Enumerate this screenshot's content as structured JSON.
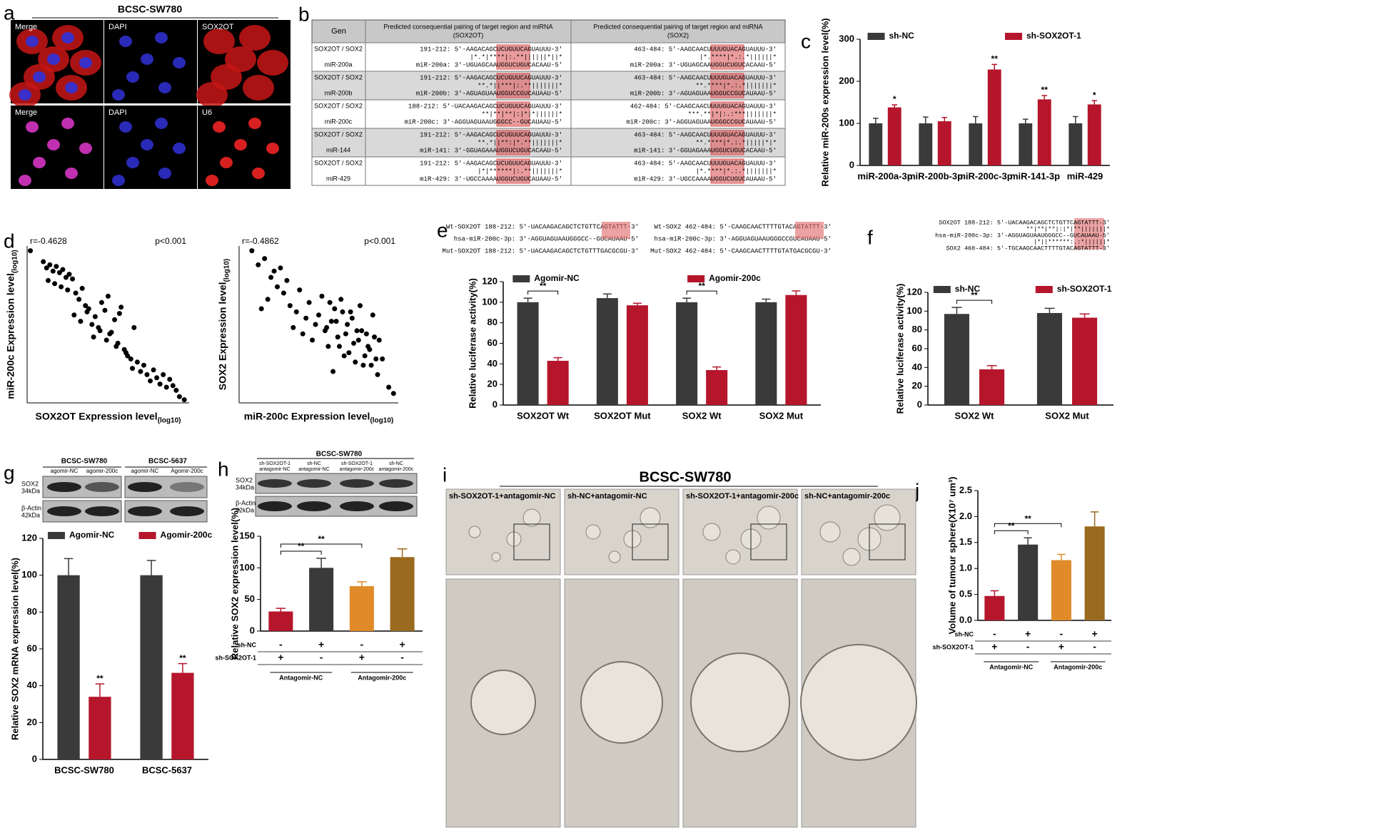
{
  "panel_labels": [
    "a",
    "b",
    "c",
    "d",
    "e",
    "f",
    "g",
    "h",
    "i",
    "j"
  ],
  "panel_a": {
    "title": "BCSC-SW780",
    "labels": [
      "Merge",
      "DAPI",
      "SOX2OT",
      "Merge",
      "DAPI",
      "U6"
    ]
  },
  "panel_b": {
    "header": [
      "Gen",
      [
        "Predicted consequential pairing of target region and miRNA",
        "(SOX2OT)"
      ],
      [
        "Predicted consequential pairing of target region and miRNA",
        "(SOX2)"
      ]
    ],
    "rows": [
      {
        "pair": "SOX2OT / SOX2",
        "mirna": "miR-200a",
        "sox2ot": [
          "191-212: 5′-AAGACAGCUCUGUUCAGUAUUU-3′",
          "|*.*|****|:.**||||||*||*",
          "miR-200a: 3′-UGUAGCAAUGGUCUGUCACAAU-5′"
        ],
        "sox2": [
          "463-484: 5′-AAGCAACUUUUGUACAGUAUUU-3′",
          "|*.****|*.:.*||||||*",
          "miR-200a: 3′-UGUAGCAAUGGUCUGUCACAAU-5′"
        ]
      },
      {
        "pair": "SOX2OT / SOX2",
        "mirna": "miR-200b",
        "sox2ot": [
          "191-212: 5′-AAGACAGCUCUGUUCAGUAUUU-3′",
          "**.*||***|:.**|||||||*",
          "miR-200b: 3′-AGUAGUAAUGGUCCGUCAUAAU-5′"
        ],
        "sox2": [
          "463-484: 5′-AAGCAACUUUUGUACAGUAUUU-3′",
          "**.****|*.:.*|||||||*",
          "miR-200b: 3′-AGUAGUAAUGGUCCGUCAUAAU-5′"
        ]
      },
      {
        "pair": "SOX2OT / SOX2",
        "mirna": "miR-200c",
        "sox2ot": [
          "188-212: 5′-UACAAGACAGCUCUGUUCAGUAUUU-3′",
          "**|**|**|:|*|*||||||*",
          "miR-200c: 3′-AGGUAGUAAUGGGCC--GUCAUAAU-5′"
        ],
        "sox2": [
          "462-484: 5′-CAAGCAACUUUUGUACAGUAUUU-3′",
          "***.**|*|:.:***|||||||*",
          "miR-200c: 3′-AGGUAGUAAUGGGCCGUCAUAAU-5′"
        ]
      },
      {
        "pair": "SOX2OT / SOX2",
        "mirna": "miR-144",
        "sox2ot": [
          "191-212: 5′-AAGACAGCUCUGUUCAGUAUUU-3′",
          "**.*||**:|*.**|||||||*",
          "miR-141: 3′-GGUAGAAAUGGUCUGUCACAAU-5′"
        ],
        "sox2": [
          "463-484: 5′-AAGCAACUUUUGUACAGUAUUU-3′",
          "**.****|*.:.*|||||*|*",
          "miR-141: 3′-GGUAGAAAUGGUCUGUCACAAU-5′"
        ]
      },
      {
        "pair": "SOX2OT / SOX2",
        "mirna": "miR-429",
        "sox2ot": [
          "191-212: 5′-AAGACAGCUCUGUUCAGUAUUU-3′",
          "|*|******|:.**|||||||*",
          "miR-429: 3′-UGCCAAAAUGGUCUGUCAUAAU-5′"
        ],
        "sox2": [
          "463-484: 5′-AAGCAACUUUUGUACAGUAUUU-3′",
          "|*.****|*.:.*|||||||*",
          "miR-429: 3′-UGCCAAAAUGGUCUGUCAUAAU-5′"
        ]
      }
    ]
  },
  "panel_e_seq": [
    [
      "Wt-SOX2OT 188-212: 5′-UACAAGACAGCTCTGTTCAGTATTT-3′",
      "hsa-miR-200c-3p: 3′-AGGUAGUAAUGGGCC--GUCAUAAU-5′",
      "Mut-SOX2OT 188-212: 5′-UACAAGACAGCTCTGTTTGACGCGU-3′"
    ],
    [
      "Wt-SOX2 462-484: 5′-CAAGCAACTTTTGTACAGTATTT-3′",
      "hsa-miR-200c-3p: 3′-AGGUAGUAAUGGGCCGUCAUAAU-5′",
      "Mut-SOX2 462-484: 5′-CAAGCAACTTTTGTATGACGCGU-3′"
    ]
  ],
  "panel_f_seq": [
    "SOX2OT 188-212: 5′-UACAAGACAGCTCTGTTCAGTATTT-3′",
    "**|**|**|:|*|**|||||||*",
    "hsa-miR-200c-3p: 3′-AGGUAGUAAUGGGCC--GUCAUAAU-5′",
    "|*||******:.:*||||||*",
    "SOX2 460-484: 5′-TGCAAGCAACTTTTGTACAGTATTT-3′"
  ],
  "panel_g_blot": {
    "groups": [
      "BCSC-SW780",
      "BCSC-5637"
    ],
    "lanes": [
      "agomir-NC",
      "agomir-200c",
      "agomir-NC",
      "Agomir-200c"
    ],
    "rows": [
      [
        "SOX2",
        "34kDa"
      ],
      [
        "β-Actin",
        "42kDa"
      ]
    ]
  },
  "panel_h_blot": {
    "title": "BCSC-SW780",
    "lanes": [
      [
        "sh-SOX2OT-1",
        "antagomir-NC"
      ],
      [
        "sh-NC",
        "antagomir-NC"
      ],
      [
        "sh-SOX2OT-1",
        "antagomir-200c"
      ],
      [
        "sh-NC",
        "antagomir-200c"
      ]
    ],
    "rows": [
      [
        "SOX2",
        "34kDa"
      ],
      [
        "β-Actin",
        "42kDa"
      ]
    ]
  },
  "panel_i": {
    "title": "BCSC-SW780",
    "labels": [
      "sh-SOX2OT-1+antagomir-NC",
      "sh-NC+antagomir-NC",
      "sh-SOX2OT-1+antagomir-200c",
      "sh-NC+antagomir-200c"
    ]
  },
  "chart_data": [
    {
      "type": "bar",
      "ylabel": "Relative miR-200s expression level(%)",
      "categories": [
        "miR-200a-3p",
        "miR-200b-3p",
        "miR-200c-3p",
        "miR-141-3p",
        "miR-429"
      ],
      "ylim": [
        0,
        300
      ],
      "yticks": [
        0,
        100,
        200,
        300
      ],
      "series": [
        {
          "name": "sh-NC",
          "color": "#3a3a3a",
          "values": [
            100,
            100,
            100,
            100,
            100
          ],
          "errors": [
            12,
            15,
            16,
            10,
            16
          ]
        },
        {
          "name": "sh-SOX2OT-1",
          "color": "#b5162b",
          "values": [
            138,
            105,
            228,
            157,
            145
          ],
          "errors": [
            6,
            9,
            12,
            9,
            9
          ]
        }
      ],
      "annotations": [
        {
          "text": "*",
          "category": 0,
          "series": 1
        },
        {
          "text": "**",
          "category": 2,
          "series": 1
        },
        {
          "text": "**",
          "category": 3,
          "series": 1
        },
        {
          "text": "*",
          "category": 4,
          "series": 1
        }
      ]
    },
    {
      "type": "scatter",
      "xlabel": "SOX2OT Expression level",
      "xlabel_sub": "(log10)",
      "ylabel": "miR-200c Expression level",
      "ylabel_sub": "(log10)",
      "annotations": [
        "r=-0.4628",
        "p<0.001"
      ],
      "xlim": [
        0,
        100
      ],
      "ylim": [
        0,
        100
      ],
      "color": "#000000",
      "x": [
        2,
        10,
        12,
        14,
        16,
        18,
        20,
        22,
        24,
        26,
        13,
        17,
        21,
        25,
        28,
        30,
        32,
        34,
        36,
        38,
        29,
        33,
        37,
        40,
        42,
        44,
        46,
        48,
        41,
        45,
        49,
        50,
        52,
        54,
        56,
        58,
        51,
        55,
        57,
        60,
        62,
        64,
        66,
        68,
        61,
        65,
        70,
        72,
        74,
        76,
        78,
        80,
        82,
        84,
        86,
        88,
        90,
        92,
        94,
        97
      ],
      "values": [
        97,
        90,
        86,
        88,
        84,
        87,
        83,
        85,
        80,
        82,
        78,
        76,
        74,
        72,
        79,
        70,
        66,
        73,
        62,
        60,
        56,
        52,
        58,
        50,
        55,
        48,
        64,
        59,
        42,
        46,
        40,
        68,
        45,
        53,
        38,
        61,
        44,
        36,
        57,
        34,
        30,
        28,
        48,
        26,
        32,
        22,
        20,
        24,
        18,
        14,
        21,
        16,
        12,
        18,
        10,
        15,
        11,
        8,
        4,
        2
      ]
    },
    {
      "type": "scatter",
      "xlabel": "miR-200c Expression level",
      "xlabel_sub": "(log10)",
      "ylabel": "SOX2 Expression level",
      "ylabel_sub": "(log10)",
      "annotations": [
        "r=-0.4862",
        "p<0.001"
      ],
      "xlim": [
        0,
        100
      ],
      "ylim": [
        0,
        100
      ],
      "color": "#000000",
      "x": [
        8,
        12,
        16,
        20,
        22,
        24,
        26,
        28,
        14,
        18,
        30,
        32,
        34,
        36,
        38,
        40,
        42,
        44,
        46,
        48,
        50,
        52,
        54,
        56,
        58,
        60,
        62,
        64,
        66,
        68,
        70,
        72,
        74,
        76,
        78,
        80,
        82,
        84,
        86,
        88,
        55,
        57,
        59,
        61,
        63,
        65,
        67,
        69,
        71,
        73,
        75,
        77,
        79,
        81,
        83,
        85,
        87,
        90,
        94,
        97
      ],
      "values": [
        97,
        88,
        92,
        80,
        84,
        74,
        86,
        70,
        60,
        66,
        78,
        62,
        48,
        58,
        72,
        44,
        54,
        64,
        40,
        50,
        56,
        68,
        46,
        36,
        52,
        60,
        42,
        66,
        30,
        50,
        58,
        38,
        46,
        62,
        24,
        44,
        34,
        56,
        28,
        40,
        48,
        64,
        20,
        52,
        36,
        58,
        44,
        32,
        54,
        26,
        40,
        46,
        30,
        36,
        24,
        42,
        18,
        28,
        10,
        6
      ]
    },
    {
      "type": "bar",
      "ylabel": "Relative luciferase activity(%)",
      "categories": [
        "SOX2OT Wt",
        "SOX2OT Mut",
        "SOX2 Wt",
        "SOX2 Mut"
      ],
      "ylim": [
        0,
        120
      ],
      "yticks": [
        0,
        20,
        40,
        60,
        80,
        100,
        120
      ],
      "series": [
        {
          "name": "Agomir-NC",
          "color": "#3a3a3a",
          "values": [
            100,
            104,
            100,
            100
          ],
          "errors": [
            4,
            4,
            4,
            3
          ]
        },
        {
          "name": "Agomir-200c",
          "color": "#b5162b",
          "values": [
            43,
            97,
            34,
            107
          ],
          "errors": [
            3,
            2,
            3,
            4
          ]
        }
      ],
      "annotations": [
        {
          "text": "**",
          "from": [
            0,
            0
          ],
          "to": [
            0,
            1
          ]
        },
        {
          "text": "**",
          "from": [
            2,
            0
          ],
          "to": [
            2,
            1
          ]
        }
      ]
    },
    {
      "type": "bar",
      "ylabel": "Relative luciferase activity(%)",
      "categories": [
        "SOX2 Wt",
        "SOX2 Mut"
      ],
      "ylim": [
        0,
        120
      ],
      "yticks": [
        0,
        20,
        40,
        60,
        80,
        100,
        120
      ],
      "series": [
        {
          "name": "sh-NC",
          "color": "#3a3a3a",
          "values": [
            97,
            98
          ],
          "errors": [
            7,
            5
          ]
        },
        {
          "name": "sh-SOX2OT-1",
          "color": "#b5162b",
          "values": [
            38,
            93
          ],
          "errors": [
            4,
            4
          ]
        }
      ],
      "annotations": [
        {
          "text": "**",
          "from": [
            0,
            0
          ],
          "to": [
            0,
            1
          ]
        }
      ]
    },
    {
      "type": "bar",
      "ylabel": "Relative SOX2  mRNA expression level(%)",
      "categories": [
        "BCSC-SW780",
        "BCSC-5637"
      ],
      "ylim": [
        0,
        120
      ],
      "yticks": [
        0,
        20,
        40,
        60,
        80,
        100,
        120
      ],
      "series": [
        {
          "name": "Agomir-NC",
          "color": "#3a3a3a",
          "values": [
            100,
            100
          ],
          "errors": [
            9,
            8
          ]
        },
        {
          "name": "Agomir-200c",
          "color": "#b5162b",
          "values": [
            34,
            47
          ],
          "errors": [
            7,
            5
          ]
        }
      ],
      "annotations": [
        {
          "text": "**",
          "category": 0,
          "series": 1
        },
        {
          "text": "**",
          "category": 1,
          "series": 1
        }
      ]
    },
    {
      "type": "bar",
      "ylabel": "Relative SOX2 expression level(%)",
      "ylim": [
        0,
        150
      ],
      "yticks": [
        0,
        50,
        100,
        150
      ],
      "values": [
        31,
        100,
        71,
        117
      ],
      "errors": [
        5,
        15,
        7,
        13
      ],
      "colors": [
        "#b5162b",
        "#3a3a3a",
        "#e08a2a",
        "#9a6a1e"
      ],
      "annotations": [
        {
          "text": "**",
          "from": 0,
          "to": 1
        },
        {
          "text": "**",
          "from": 0,
          "to": 2
        }
      ],
      "conditions": [
        {
          "name": "sh-NC",
          "signs": [
            "-",
            "+",
            "-",
            "+"
          ]
        },
        {
          "name": "sh-SOX2OT-1",
          "signs": [
            "+",
            "-",
            "+",
            "-"
          ]
        }
      ],
      "groups": [
        "Antagomir-NC",
        "Antagomir-200c"
      ]
    },
    {
      "type": "bar",
      "ylabel": "Volume of tumour sphere(X10⁷ um³)",
      "ylim": [
        0,
        2.5
      ],
      "yticks": [
        {
          "value": 0,
          "label": "0.0"
        },
        0.5,
        {
          "value": 1,
          "label": "1.0"
        },
        1.5,
        {
          "value": 2,
          "label": "2.0"
        },
        2.5
      ],
      "values": [
        0.47,
        1.46,
        1.16,
        1.81
      ],
      "errors": [
        0.1,
        0.13,
        0.11,
        0.28
      ],
      "colors": [
        "#b5162b",
        "#3a3a3a",
        "#e08a2a",
        "#9a6a1e"
      ],
      "annotations": [
        {
          "text": "**",
          "from": 0,
          "to": 1
        },
        {
          "text": "**",
          "from": 0,
          "to": 2
        }
      ],
      "conditions": [
        {
          "name": "sh-NC",
          "signs": [
            "-",
            "+",
            "-",
            "+"
          ]
        },
        {
          "name": "sh-SOX2OT-1",
          "signs": [
            "+",
            "-",
            "+",
            "-"
          ]
        }
      ],
      "groups": [
        "Antagomir-NC",
        "Antagomir-200c"
      ]
    }
  ]
}
